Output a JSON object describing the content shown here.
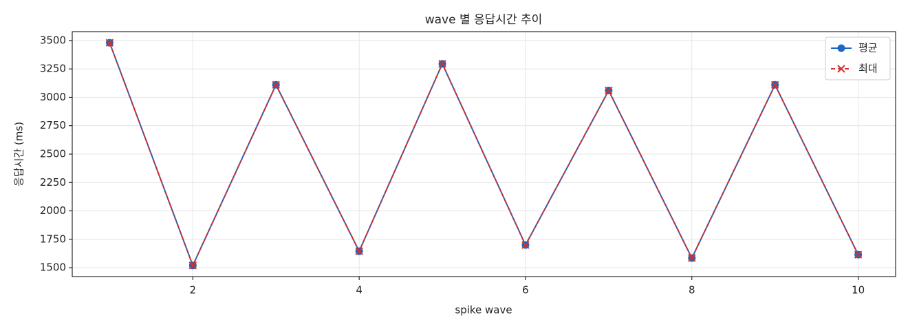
{
  "chart_data": {
    "type": "line",
    "title": "wave 별 응답시간 추이",
    "x_label": "spike wave",
    "y_label": "응답시간 (ms)",
    "x": [
      1,
      2,
      3,
      4,
      5,
      6,
      7,
      8,
      9,
      10
    ],
    "series": [
      {
        "name": "평균",
        "color": "#1f67c0",
        "marker": "o",
        "linestyle": "solid",
        "values": [
          3480,
          1520,
          3110,
          1645,
          3295,
          1700,
          3060,
          1585,
          3110,
          1615
        ]
      },
      {
        "name": "최대",
        "color": "#d0312d",
        "marker": "x",
        "linestyle": "dashed",
        "values": [
          3480,
          1520,
          3110,
          1645,
          3295,
          1700,
          3060,
          1585,
          3110,
          1615
        ]
      }
    ],
    "xlim": [
      0.55,
      10.45
    ],
    "ylim": [
      1422,
      3578
    ],
    "xticks": [
      2,
      4,
      6,
      8,
      10
    ],
    "yticks": [
      1500,
      1750,
      2000,
      2250,
      2500,
      2750,
      3000,
      3250,
      3500
    ],
    "grid": true,
    "legend": "upper right"
  }
}
